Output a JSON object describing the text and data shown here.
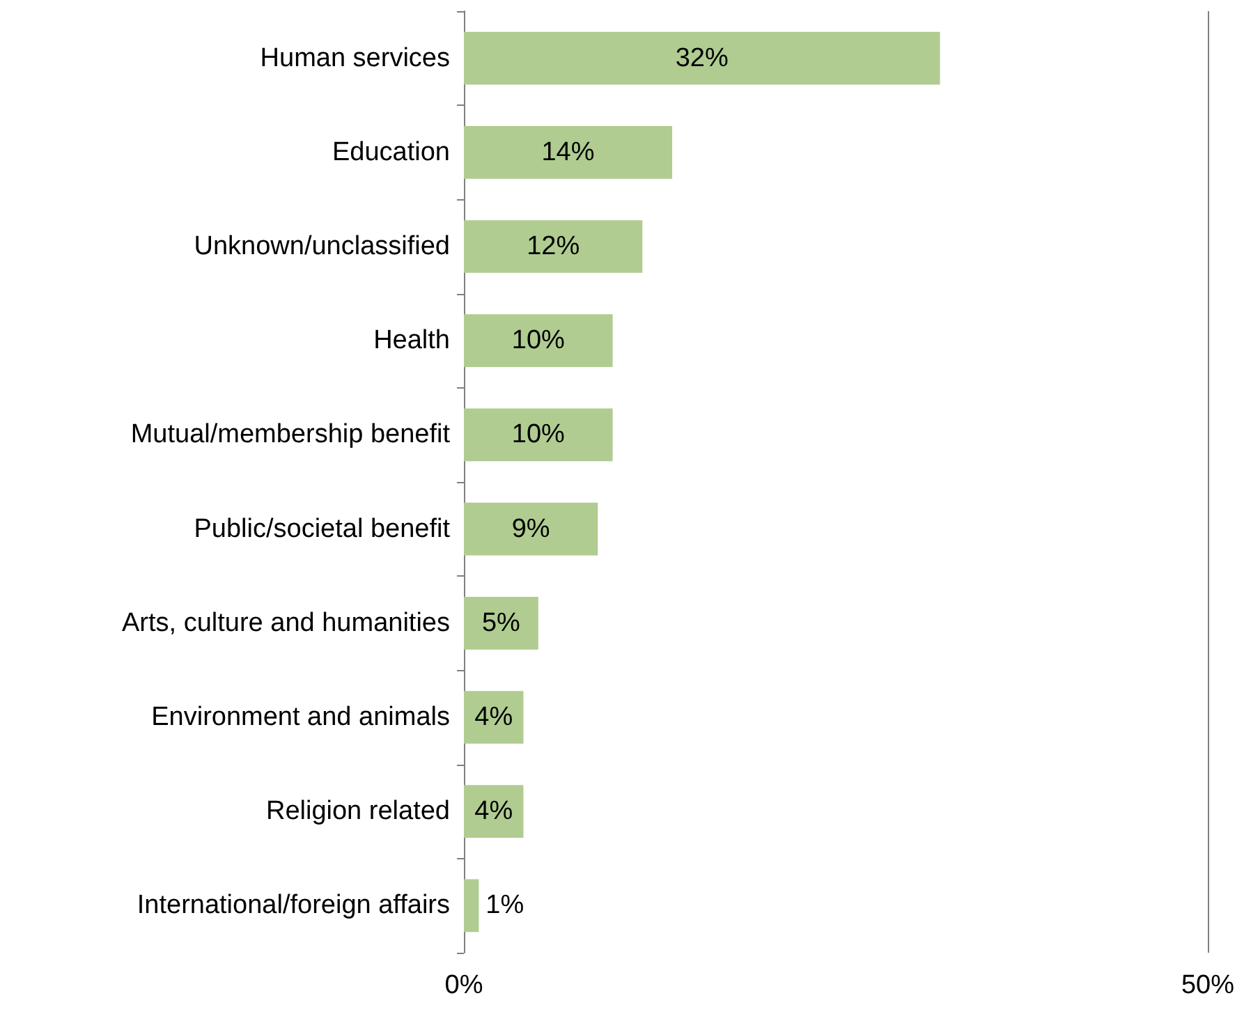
{
  "chart_data": {
    "type": "bar",
    "orientation": "horizontal",
    "categories": [
      "Human services",
      "Education",
      "Unknown/unclassified",
      "Health",
      "Mutual/membership benefit",
      "Public/societal benefit",
      "Arts, culture and humanities",
      "Environment and animals",
      "Religion related",
      "International/foreign affairs"
    ],
    "values": [
      32,
      14,
      12,
      10,
      10,
      9,
      5,
      4,
      4,
      1
    ],
    "value_labels": [
      "32%",
      "14%",
      "12%",
      "10%",
      "10%",
      "9%",
      "5%",
      "4%",
      "4%",
      "1%"
    ],
    "color": "#b0cc91",
    "xlim": [
      0,
      50
    ],
    "xticks": [
      {
        "value": 0,
        "label": "0%"
      },
      {
        "value": 50,
        "label": "50%"
      }
    ],
    "ref_lines": [
      {
        "axis": "x",
        "value": 50,
        "color": "#808080"
      }
    ]
  }
}
